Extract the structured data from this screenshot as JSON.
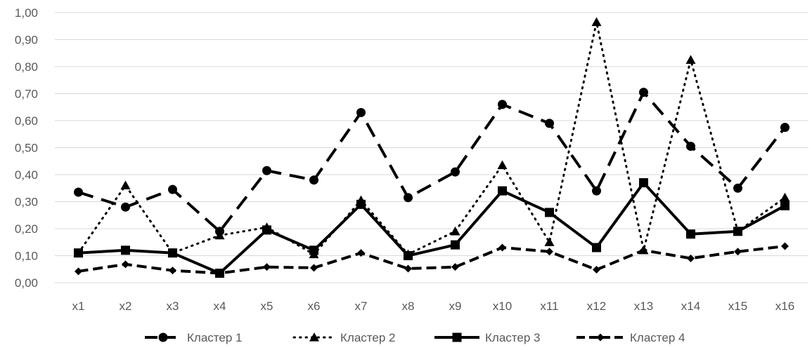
{
  "chart_data": {
    "type": "line",
    "title": "",
    "xlabel": "",
    "ylabel": "",
    "categories": [
      "x1",
      "x2",
      "x3",
      "x4",
      "x5",
      "x6",
      "x7",
      "x8",
      "x9",
      "x10",
      "x11",
      "x12",
      "x13",
      "x14",
      "x15",
      "x16"
    ],
    "ylim": [
      0,
      1
    ],
    "y_ticks": [
      "0,00",
      "0,10",
      "0,20",
      "0,30",
      "0,40",
      "0,50",
      "0,60",
      "0,70",
      "0,80",
      "0,90",
      "1,00"
    ],
    "grid": true,
    "legend_position": "bottom",
    "series": [
      {
        "name": "Кластер 1",
        "marker": "circle",
        "line_style": "long-dash",
        "values": [
          0.335,
          0.28,
          0.345,
          0.19,
          0.415,
          0.38,
          0.63,
          0.315,
          0.41,
          0.66,
          0.59,
          0.34,
          0.705,
          0.505,
          0.35,
          0.575
        ]
      },
      {
        "name": "Кластер 2",
        "marker": "triangle",
        "line_style": "dotted",
        "values": [
          0.11,
          0.36,
          0.11,
          0.175,
          0.205,
          0.105,
          0.305,
          0.105,
          0.19,
          0.435,
          0.15,
          0.965,
          0.12,
          0.825,
          0.19,
          0.315
        ]
      },
      {
        "name": "Кластер 3",
        "marker": "square",
        "line_style": "solid",
        "values": [
          0.11,
          0.12,
          0.11,
          0.035,
          0.195,
          0.12,
          0.29,
          0.1,
          0.14,
          0.34,
          0.26,
          0.13,
          0.37,
          0.18,
          0.19,
          0.285
        ]
      },
      {
        "name": "Кластер 4",
        "marker": "diamond",
        "line_style": "dashed",
        "values": [
          0.042,
          0.068,
          0.045,
          0.035,
          0.058,
          0.055,
          0.11,
          0.052,
          0.058,
          0.13,
          0.115,
          0.048,
          0.12,
          0.09,
          0.115,
          0.135
        ]
      }
    ]
  }
}
